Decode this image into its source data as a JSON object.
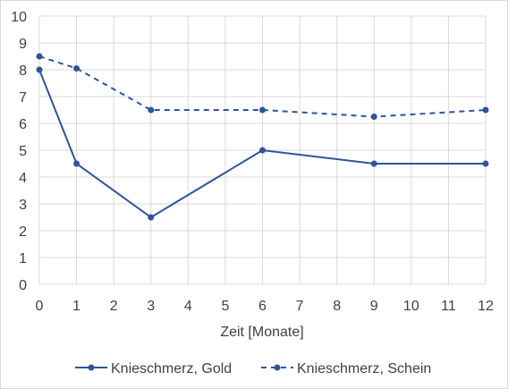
{
  "chart_data": {
    "type": "line",
    "title": "",
    "xlabel": "Zeit [Monate]",
    "ylabel": "",
    "xlim": [
      0,
      12
    ],
    "ylim": [
      0,
      10
    ],
    "xticks": [
      "0",
      "1",
      "2",
      "3",
      "4",
      "5",
      "6",
      "7",
      "8",
      "9",
      "10",
      "11",
      "12"
    ],
    "yticks": [
      "0",
      "1",
      "2",
      "3",
      "4",
      "5",
      "6",
      "7",
      "8",
      "9",
      "10"
    ],
    "grid": true,
    "legend": "bottom",
    "series": [
      {
        "name": "Knieschmerz, Gold",
        "style": "solid",
        "color": "#2f5597",
        "x": [
          0,
          1,
          3,
          6,
          9,
          12
        ],
        "y": [
          8,
          4.5,
          2.5,
          5,
          4.5,
          4.5
        ]
      },
      {
        "name": "Knieschmerz, Schein",
        "style": "dashed",
        "color": "#2f5597",
        "x": [
          0,
          1,
          3,
          6,
          9,
          12
        ],
        "y": [
          8.5,
          8.05,
          6.5,
          6.5,
          6.25,
          6.5
        ]
      }
    ]
  }
}
